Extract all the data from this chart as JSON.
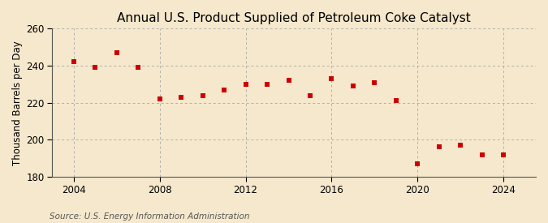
{
  "title": "Annual U.S. Product Supplied of Petroleum Coke Catalyst",
  "ylabel": "Thousand Barrels per Day",
  "source": "Source: U.S. Energy Information Administration",
  "background_color": "#f5e8cc",
  "plot_background_color": "#f5e8cc",
  "marker_color": "#cc0000",
  "years": [
    2004,
    2005,
    2006,
    2007,
    2008,
    2009,
    2010,
    2011,
    2012,
    2013,
    2014,
    2015,
    2016,
    2017,
    2018,
    2019,
    2020,
    2021,
    2022,
    2023,
    2024
  ],
  "values": [
    242,
    239,
    247,
    239,
    222,
    223,
    224,
    227,
    230,
    230,
    232,
    224,
    233,
    229,
    231,
    221,
    187,
    196,
    197,
    192,
    192
  ],
  "ylim": [
    180,
    260
  ],
  "yticks": [
    180,
    200,
    220,
    240,
    260
  ],
  "xlim": [
    2003.0,
    2025.5
  ],
  "xticks": [
    2004,
    2008,
    2012,
    2016,
    2020,
    2024
  ],
  "grid_color": "#b0b0b0",
  "title_fontsize": 11,
  "label_fontsize": 8.5,
  "tick_fontsize": 8.5,
  "source_fontsize": 7.5,
  "marker_size": 4
}
